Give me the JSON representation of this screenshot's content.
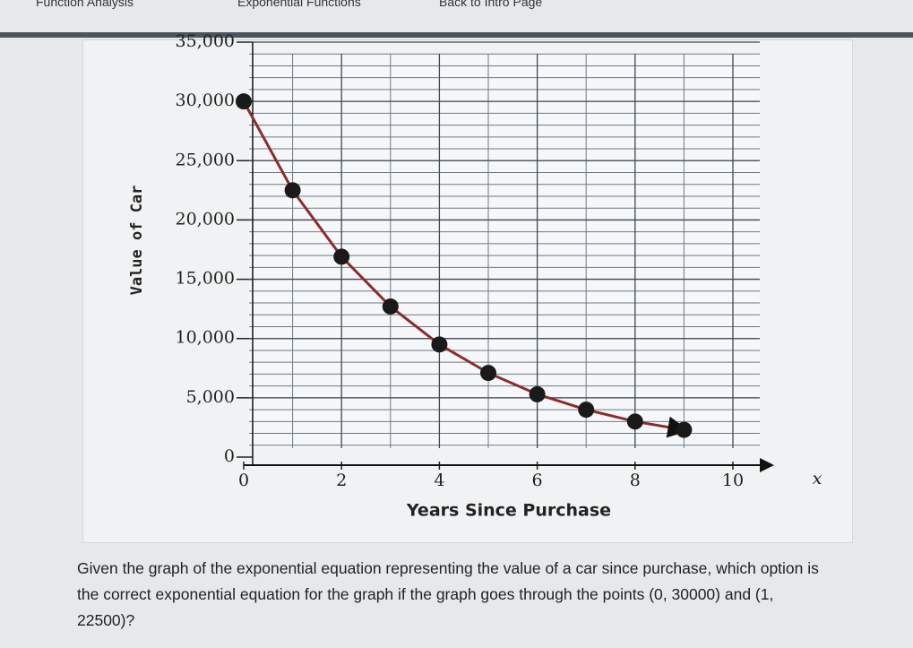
{
  "header": {
    "left": "Function Analysis",
    "title": "Exponential Functions",
    "right": "Back to Intro Page"
  },
  "chart_data": {
    "type": "line",
    "xlabel": "Years Since Purchase",
    "ylabel": "Value of Car",
    "x_axis_variable": "x",
    "x": [
      0,
      1,
      2,
      3,
      4,
      5,
      6,
      7,
      8,
      9
    ],
    "series": [
      {
        "name": "Value of Car",
        "color": "#8b2c2c",
        "marker_color": "#1a1a1a",
        "values": [
          30000,
          22500,
          16900,
          12700,
          9500,
          7100,
          5300,
          4000,
          3000,
          2300
        ]
      }
    ],
    "xlim": [
      0,
      10.6
    ],
    "xticks": [
      0,
      2,
      4,
      6,
      8,
      10
    ],
    "ylim": [
      0,
      35000
    ],
    "yticks": [
      0,
      {
        "value": 5000,
        "label": "5,000"
      },
      {
        "value": 10000,
        "label": "10,000"
      },
      {
        "value": 15000,
        "label": "15,000"
      },
      {
        "value": 20000,
        "label": "20,000"
      },
      {
        "value": 25000,
        "label": "25,000"
      },
      {
        "value": 30000,
        "label": "30,000"
      },
      {
        "value": 35000,
        "label": "35,000"
      }
    ],
    "grid": true,
    "legend": false
  },
  "question": {
    "text": "Given the graph of the exponential equation representing the value of a car since purchase, which option is the correct exponential equation for the graph if the graph goes through the points (0, 30000) and (1, 22500)?"
  }
}
